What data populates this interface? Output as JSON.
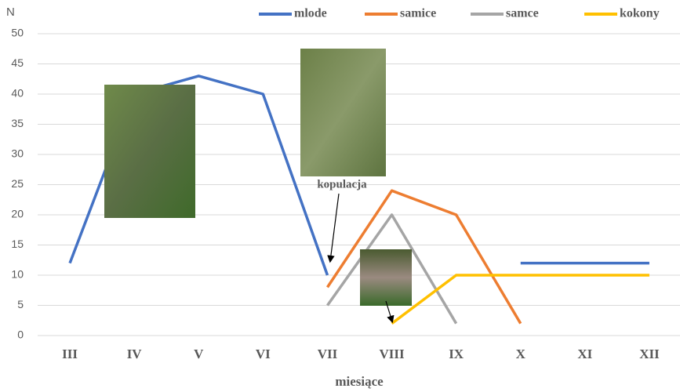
{
  "chart_data": {
    "type": "line",
    "y_label": "N",
    "x_label": "miesiące",
    "annotation": "kopulacja",
    "categories": [
      "III",
      "IV",
      "V",
      "VI",
      "VII",
      "VIII",
      "IX",
      "X",
      "XI",
      "XII"
    ],
    "series": [
      {
        "name": "mlode",
        "color": "#4472c4",
        "values": [
          12,
          40,
          43,
          40,
          10,
          null,
          null,
          12,
          12,
          12
        ]
      },
      {
        "name": "samice",
        "color": "#ed7d31",
        "values": [
          null,
          null,
          null,
          null,
          8,
          24,
          20,
          2,
          null,
          null
        ]
      },
      {
        "name": "samce",
        "color": "#a5a5a5",
        "values": [
          null,
          null,
          null,
          null,
          5,
          20,
          2,
          null,
          null,
          null
        ]
      },
      {
        "name": "kokony",
        "color": "#ffc000",
        "values": [
          null,
          null,
          null,
          null,
          null,
          2,
          10,
          10,
          10,
          10
        ]
      }
    ],
    "ylim": [
      0,
      50
    ],
    "yticks": [
      0,
      5,
      10,
      15,
      20,
      25,
      30,
      35,
      40,
      45,
      50
    ],
    "grid": true,
    "legend": "top"
  }
}
